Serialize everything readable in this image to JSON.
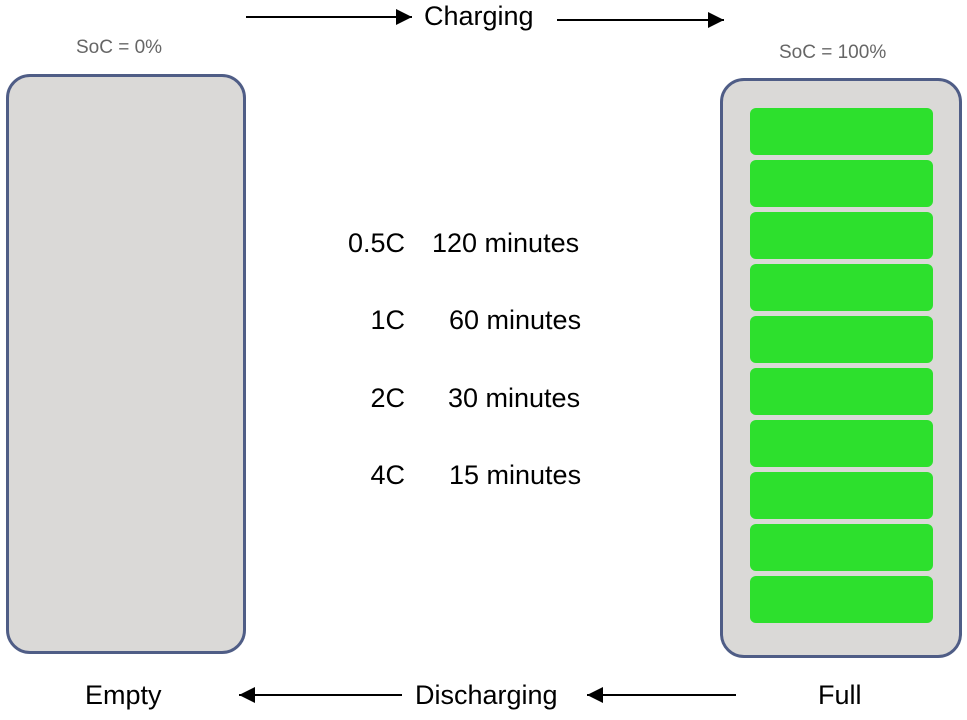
{
  "top_label": "Charging",
  "soc_left": "SoC = 0%",
  "soc_right": "SoC = 100%",
  "rates": [
    {
      "c_rate": "0.5C",
      "time": "120 minutes"
    },
    {
      "c_rate": "1C",
      "time": "60 minutes"
    },
    {
      "c_rate": "2C",
      "time": "30 minutes"
    },
    {
      "c_rate": "4C",
      "time": "15 minutes"
    }
  ],
  "bottom": {
    "empty": "Empty",
    "discharging": "Discharging",
    "full": "Full"
  },
  "colors": {
    "battery_fill": "#dad9d7",
    "battery_border": "#4f5d86",
    "cell_green": "#2de02d",
    "soc_text": "#666666"
  },
  "full_battery_cells": 10
}
